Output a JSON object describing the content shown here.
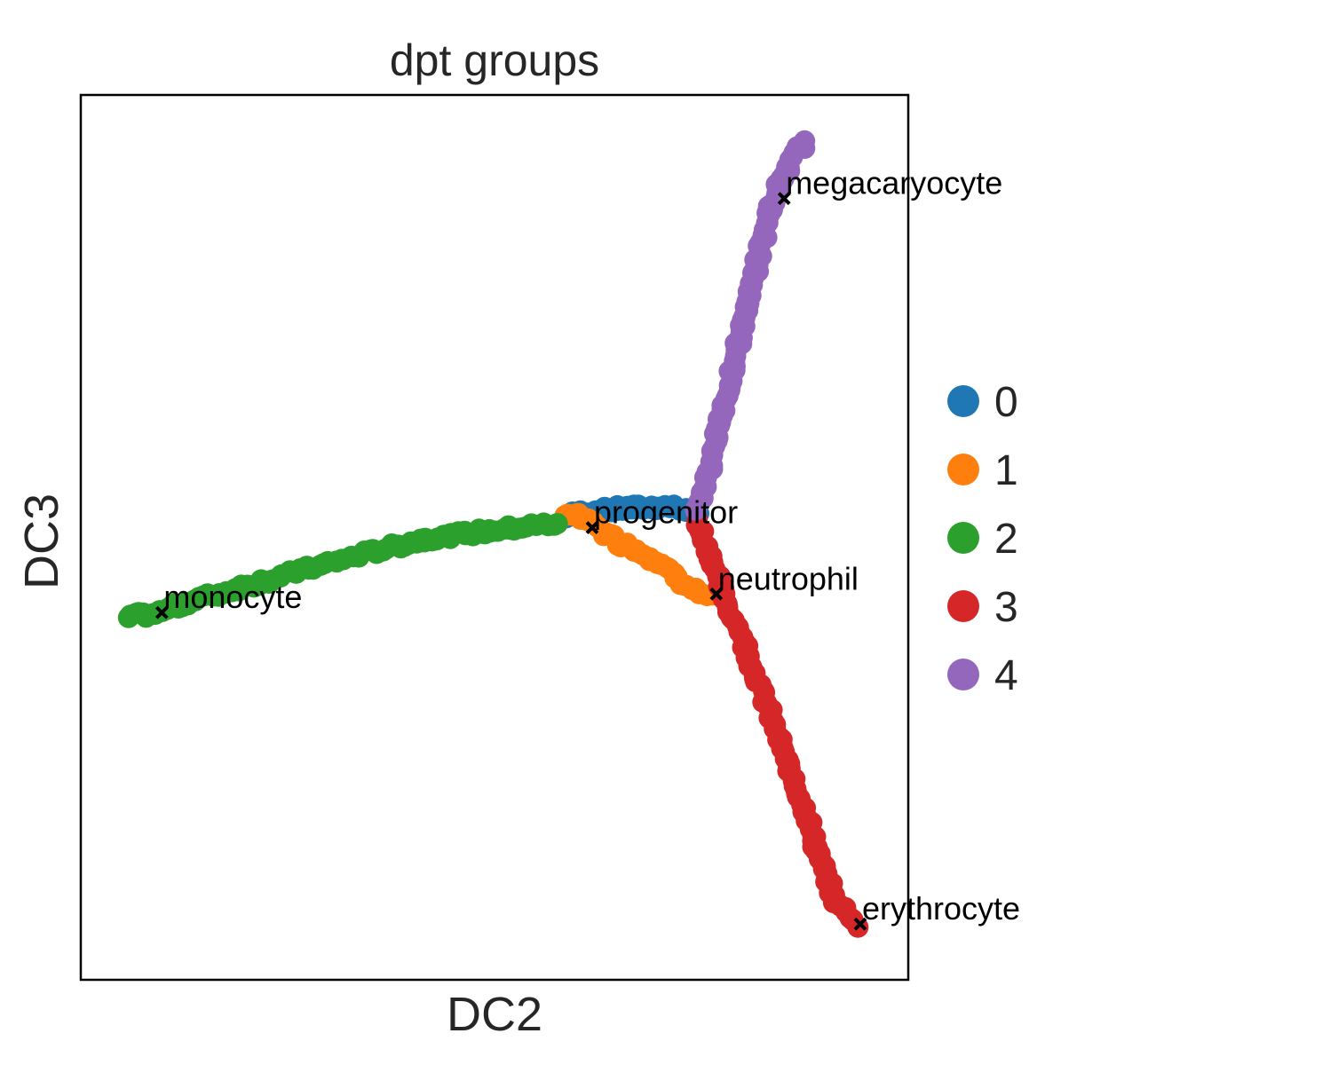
{
  "chart_data": {
    "type": "scatter",
    "title": "dpt groups",
    "xlabel": "DC2",
    "ylabel": "DC3",
    "xlim": [
      0,
      100
    ],
    "ylim": [
      0,
      100
    ],
    "grid": false,
    "ticks": false,
    "legend_position": "right",
    "series": [
      {
        "name": "0",
        "color": "#1f77b4",
        "path": [
          [
            58.5,
            52.3
          ],
          [
            61,
            52.9
          ],
          [
            63.5,
            53.1
          ],
          [
            66,
            53.3
          ],
          [
            68.5,
            53.4
          ],
          [
            71,
            53.5
          ],
          [
            73,
            53.2
          ],
          [
            74.5,
            52.6
          ]
        ],
        "count": 40
      },
      {
        "name": "1",
        "color": "#ff7f0e",
        "path": [
          [
            58.5,
            52.8
          ],
          [
            60,
            52.5
          ],
          [
            61.5,
            51.8
          ],
          [
            63,
            50.8
          ],
          [
            65,
            49.5
          ],
          [
            67.5,
            48.5
          ],
          [
            70,
            47.2
          ],
          [
            72,
            45.5
          ],
          [
            75,
            43.5
          ],
          [
            76.5,
            43.3
          ]
        ],
        "count": 45
      },
      {
        "name": "2",
        "color": "#2ca02c",
        "path": [
          [
            5.5,
            41
          ],
          [
            9,
            41.4
          ],
          [
            13,
            42.7
          ],
          [
            20,
            44.5
          ],
          [
            28,
            46.6
          ],
          [
            35,
            48.3
          ],
          [
            42,
            49.9
          ],
          [
            50,
            50.8
          ],
          [
            57.5,
            51.6
          ]
        ],
        "count": 110
      },
      {
        "name": "3",
        "color": "#d62728",
        "path": [
          [
            74.5,
            51.8
          ],
          [
            75.5,
            49.5
          ],
          [
            76.3,
            47.5
          ],
          [
            77,
            45.2
          ],
          [
            78,
            42.5
          ],
          [
            79.5,
            39.8
          ],
          [
            81,
            36
          ],
          [
            82.5,
            32
          ],
          [
            84,
            28.3
          ],
          [
            85.5,
            24
          ],
          [
            87.5,
            19.5
          ],
          [
            89,
            14.5
          ],
          [
            91,
            9.2
          ],
          [
            93.8,
            6.3
          ]
        ],
        "count": 110
      },
      {
        "name": "4",
        "color": "#9467bd",
        "path": [
          [
            74.5,
            53
          ],
          [
            75.5,
            56
          ],
          [
            76.5,
            60
          ],
          [
            77.5,
            64
          ],
          [
            78.5,
            68
          ],
          [
            79.5,
            72
          ],
          [
            80.5,
            76
          ],
          [
            81.5,
            80
          ],
          [
            82.5,
            84
          ],
          [
            83.5,
            87.5
          ],
          [
            84.5,
            90
          ],
          [
            85.5,
            91.5
          ],
          [
            86.5,
            94
          ],
          [
            87.5,
            94.5
          ]
        ],
        "count": 110
      }
    ],
    "annotations": [
      {
        "text": "progenitor",
        "x": 61.8,
        "y": 51.1
      },
      {
        "text": "neutrophil",
        "x": 76.8,
        "y": 43.6
      },
      {
        "text": "monocyte",
        "x": 9.8,
        "y": 41.5
      },
      {
        "text": "megacaryocyte",
        "x": 85,
        "y": 88.3
      },
      {
        "text": "erythrocyte",
        "x": 94.2,
        "y": 6.3
      }
    ],
    "legend": [
      "0",
      "1",
      "2",
      "3",
      "4"
    ]
  }
}
